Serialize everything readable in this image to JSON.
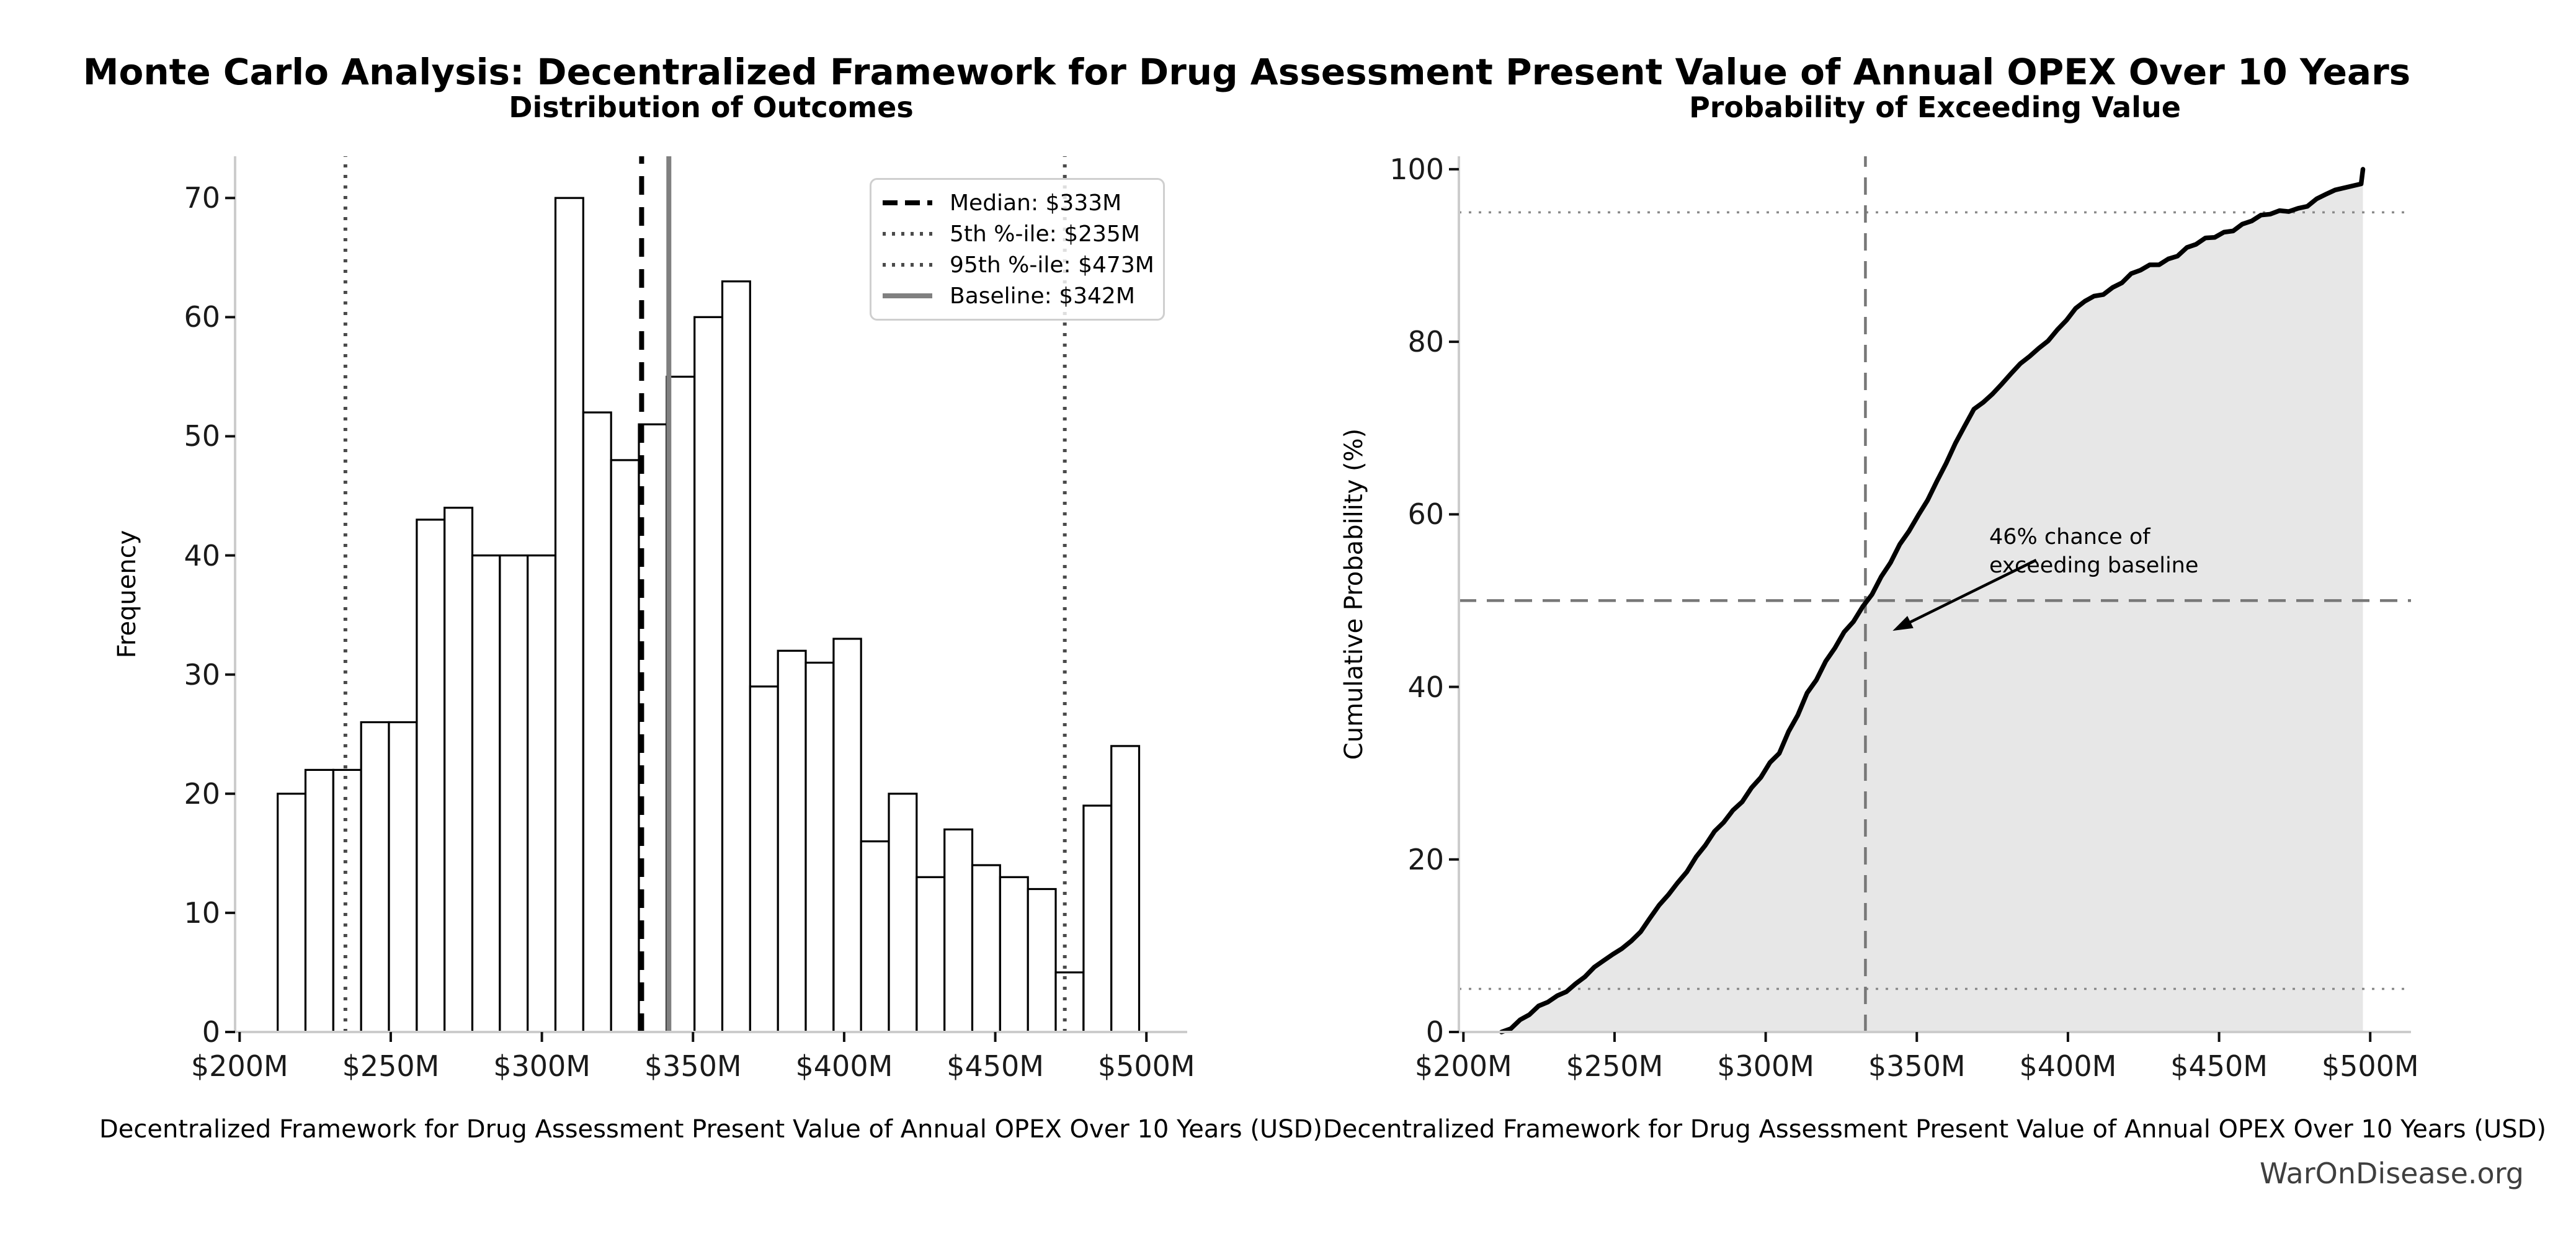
{
  "page": {
    "title": "Monte Carlo Analysis: Decentralized Framework for Drug Assessment Present Value of Annual OPEX Over 10 Years",
    "watermark": "WarOnDisease.org",
    "background": "#ffffff"
  },
  "chart_data": [
    {
      "id": "histogram",
      "type": "bar",
      "title": "Distribution of Outcomes",
      "xlabel": "Decentralized Framework for Drug Assessment Present Value of Annual OPEX Over 10 Years (USD)",
      "ylabel": "Frequency",
      "x_tick_labels": [
        "$200M",
        "$250M",
        "$300M",
        "$350M",
        "$400M",
        "$450M",
        "$500M"
      ],
      "x_tick_values": [
        200,
        250,
        300,
        350,
        400,
        450,
        500
      ],
      "y_tick_values": [
        0,
        10,
        20,
        30,
        40,
        50,
        60,
        70
      ],
      "xlim": [
        198.5,
        513.5
      ],
      "ylim": [
        0,
        73.5
      ],
      "grid": false,
      "bar_fill": "#ffffff",
      "bar_edge": "#000000",
      "bin_edges": [
        212.6,
        221.8,
        231.0,
        240.2,
        249.4,
        258.6,
        267.8,
        277.0,
        286.1,
        295.3,
        304.5,
        313.7,
        322.9,
        332.1,
        341.3,
        350.5,
        359.7,
        368.9,
        378.1,
        387.3,
        396.5,
        405.6,
        414.8,
        424.0,
        433.2,
        442.4,
        451.6,
        460.8,
        470.0,
        479.2,
        488.4,
        497.6
      ],
      "counts": [
        20,
        22,
        22,
        26,
        26,
        43,
        44,
        40,
        40,
        40,
        70,
        52,
        48,
        51,
        55,
        60,
        63,
        29,
        32,
        31,
        33,
        16,
        20,
        13,
        17,
        14,
        13,
        12,
        5,
        19,
        24
      ],
      "total_samples": 1000,
      "ref_lines": [
        {
          "label": "Median: $333M",
          "x": 333,
          "style": "dashed",
          "color": "#000000",
          "width": 8
        },
        {
          "label": "5th %-ile: $235M",
          "x": 235,
          "style": "dotted",
          "color": "#4a4a4a",
          "width": 6
        },
        {
          "label": "95th %-ile: $473M",
          "x": 473,
          "style": "dotted",
          "color": "#4a4a4a",
          "width": 6
        },
        {
          "label": "Baseline: $342M",
          "x": 342,
          "style": "solid",
          "color": "#808080",
          "width": 8
        }
      ]
    },
    {
      "id": "cdf",
      "type": "line",
      "title": "Probability of Exceeding Value",
      "xlabel": "Decentralized Framework for Drug Assessment Present Value of Annual OPEX Over 10 Years (USD)",
      "ylabel": "Cumulative Probability (%)",
      "x_tick_labels": [
        "$200M",
        "$250M",
        "$300M",
        "$350M",
        "$400M",
        "$450M",
        "$500M"
      ],
      "x_tick_values": [
        200,
        250,
        300,
        350,
        400,
        450,
        500
      ],
      "y_tick_values": [
        0,
        20,
        40,
        60,
        80,
        100
      ],
      "xlim": [
        198.5,
        513.5
      ],
      "ylim": [
        0,
        101.5
      ],
      "line_color": "#000000",
      "fill_color": "#e7e7e7",
      "x": [
        212.6,
        221.8,
        231.0,
        240.2,
        249.4,
        258.6,
        267.8,
        277.0,
        286.1,
        295.3,
        304.5,
        313.7,
        322.9,
        332.1,
        341.3,
        350.5,
        359.7,
        368.9,
        378.1,
        387.3,
        396.5,
        405.6,
        414.8,
        424.0,
        433.2,
        442.4,
        451.6,
        460.8,
        470.0,
        479.2,
        488.4,
        497.0,
        497.6
      ],
      "y": [
        0,
        2.0,
        4.2,
        6.4,
        9.0,
        11.6,
        15.9,
        20.3,
        24.3,
        28.3,
        32.3,
        39.3,
        44.5,
        49.3,
        54.4,
        59.9,
        65.9,
        72.2,
        75.1,
        78.3,
        81.4,
        84.7,
        86.3,
        88.3,
        89.6,
        91.3,
        92.7,
        94.0,
        95.2,
        95.7,
        97.6,
        98.3,
        100.0
      ],
      "guides": {
        "h_dotted": [
          5,
          95
        ],
        "h_dashed": [
          50
        ],
        "v_dashed": [
          333
        ],
        "dotted_color": "#8a8a8a",
        "dashed_color": "#777777"
      },
      "annotation": {
        "text": "46% chance of\nexceeding baseline",
        "arrow_tail_xy": [
          389.5,
          54.7
        ],
        "arrow_head_xy": [
          342,
          46.5
        ]
      }
    }
  ]
}
